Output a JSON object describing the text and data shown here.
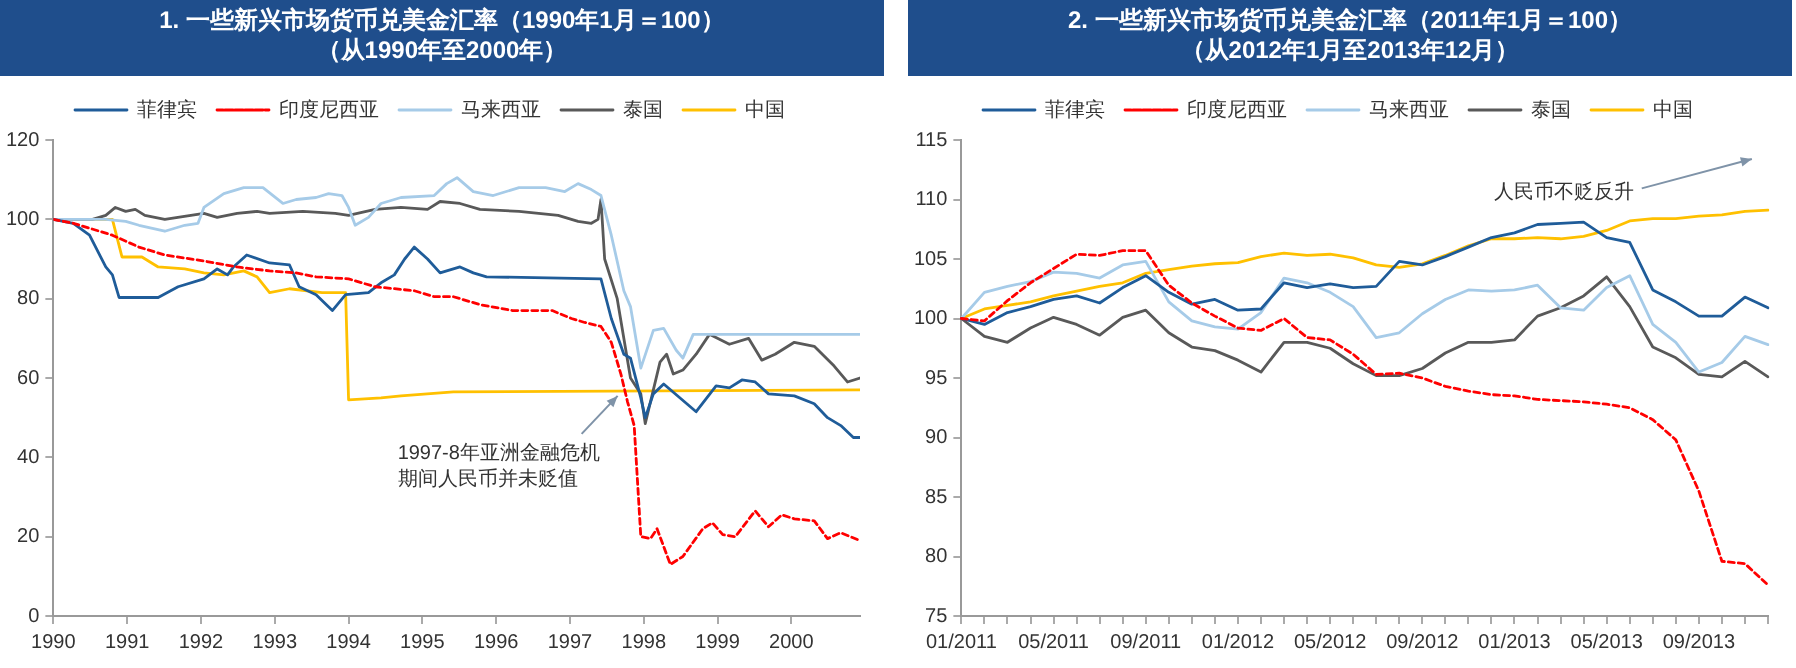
{
  "chart_data": [
    {
      "type": "line",
      "title": "1. 一些新兴市场货币兑美金汇率（1990年1月＝100）",
      "subtitle": "（从1990年至2000年）",
      "xlim": [
        1990,
        2000.93
      ],
      "xticks": [
        1990,
        1991,
        1992,
        1993,
        1994,
        1995,
        1996,
        1997,
        1998,
        1999,
        2000
      ],
      "ylim": [
        0,
        120
      ],
      "yticks": [
        0,
        20,
        40,
        60,
        80,
        100,
        120
      ],
      "legend": "top",
      "annotations": [
        {
          "text": "1997-8年亚洲金融危机期间人民币并未贬值",
          "x": 1997.7,
          "y": 57
        }
      ],
      "series": [
        {
          "name": "菲律宾",
          "color": "#1f5c99",
          "x": [
            1990,
            1990.27,
            1990.49,
            1990.71,
            1990.8,
            1990.89,
            1991.42,
            1991.69,
            1992.04,
            1992.22,
            1992.36,
            1992.44,
            1992.62,
            1992.93,
            1993.2,
            1993.33,
            1993.56,
            1993.78,
            1993.96,
            1994.27,
            1994.44,
            1994.62,
            1994.76,
            1994.89,
            1995.07,
            1995.24,
            1995.51,
            1995.69,
            1995.87,
            1997.42,
            1997.56,
            1997.73,
            1997.82,
            1997.96,
            1998.02,
            1998.13,
            1998.27,
            1998.71,
            1998.98,
            1999.16,
            1999.33,
            1999.51,
            1999.69,
            2000.04,
            2000.31,
            2000.49,
            2000.67,
            2000.84,
            2000.93
          ],
          "values": [
            100,
            99,
            96,
            88,
            86,
            80.3,
            80.3,
            83,
            85,
            87.5,
            86,
            88,
            91,
            89,
            88.5,
            83,
            81,
            77,
            81,
            81.5,
            84,
            86,
            90,
            93,
            90,
            86.5,
            88,
            86.5,
            85.5,
            85,
            75,
            66,
            65,
            55,
            50,
            56,
            58.5,
            51.5,
            58,
            57.5,
            59.5,
            59,
            56,
            55.5,
            53.5,
            50,
            48,
            45,
            45
          ]
        },
        {
          "name": "印度尼西亚",
          "color": "#ff0000",
          "line_style": "dashed",
          "x": [
            1990,
            1990.27,
            1990.8,
            1991.16,
            1991.51,
            1992.04,
            1992.49,
            1992.93,
            1993.29,
            1993.56,
            1994,
            1994.18,
            1994.36,
            1994.89,
            1995.16,
            1995.42,
            1995.78,
            1996.22,
            1996.76,
            1997.02,
            1997.2,
            1997.42,
            1997.56,
            1997.69,
            1997.78,
            1997.87,
            1997.96,
            1998.09,
            1998.18,
            1998.36,
            1998.53,
            1998.8,
            1998.93,
            1999.07,
            1999.24,
            1999.51,
            1999.69,
            1999.87,
            2000.04,
            2000.31,
            2000.49,
            2000.67,
            2000.93
          ],
          "values": [
            100,
            99,
            96,
            93,
            91,
            89.5,
            88,
            87,
            86.5,
            85.5,
            85,
            84,
            83,
            82,
            80.5,
            80.5,
            78.5,
            77,
            77,
            75,
            74,
            73,
            69,
            61,
            54,
            48,
            20,
            19.5,
            22,
            13,
            15,
            22,
            23.5,
            20.5,
            20,
            26.5,
            22.5,
            25.5,
            24.5,
            24,
            19.5,
            21,
            19
          ]
        },
        {
          "name": "马来西亚",
          "color": "#a6cbe8",
          "x": [
            1990,
            1990.71,
            1990.98,
            1991.16,
            1991.51,
            1991.78,
            1991.96,
            1992.04,
            1992.31,
            1992.58,
            1992.84,
            1993.11,
            1993.29,
            1993.56,
            1993.73,
            1993.91,
            1994,
            1994.09,
            1994.27,
            1994.44,
            1994.71,
            1995.16,
            1995.33,
            1995.47,
            1995.69,
            1995.96,
            1996.31,
            1996.67,
            1996.93,
            1997.11,
            1997.29,
            1997.42,
            1997.56,
            1997.73,
            1997.82,
            1997.96,
            1998.13,
            1998.27,
            1998.44,
            1998.53,
            1998.67,
            2000.93
          ],
          "values": [
            100,
            100,
            99.5,
            98.5,
            97,
            98.5,
            99,
            103,
            106.5,
            108,
            108,
            104,
            105,
            105.5,
            106.5,
            106,
            103,
            98.5,
            100.5,
            104,
            105.5,
            106,
            109,
            110.5,
            107,
            106,
            108,
            108,
            107,
            109,
            107.5,
            106,
            96,
            82,
            78,
            62.5,
            72,
            72.5,
            67,
            65,
            71,
            71
          ]
        },
        {
          "name": "泰国",
          "color": "#595959",
          "x": [
            1990,
            1990.53,
            1990.71,
            1990.84,
            1990.98,
            1991.11,
            1991.24,
            1991.51,
            1992.04,
            1992.22,
            1992.49,
            1992.76,
            1992.93,
            1993.38,
            1993.82,
            1994,
            1994.36,
            1994.71,
            1995.07,
            1995.24,
            1995.51,
            1995.78,
            1996.31,
            1996.84,
            1997.11,
            1997.29,
            1997.38,
            1997.42,
            1997.47,
            1997.64,
            1997.82,
            1997.96,
            1998.02,
            1998.13,
            1998.22,
            1998.31,
            1998.4,
            1998.53,
            1998.71,
            1998.89,
            1999.16,
            1999.42,
            1999.6,
            1999.78,
            2000.04,
            2000.31,
            2000.58,
            2000.76,
            2000.93
          ],
          "values": [
            100,
            100,
            101,
            103,
            102,
            102.5,
            101,
            100,
            101.5,
            100.5,
            101.5,
            102,
            101.5,
            102,
            101.5,
            101,
            102.5,
            103,
            102.5,
            104.5,
            104,
            102.5,
            102,
            101,
            99.5,
            99,
            100,
            105,
            90,
            80,
            60,
            56,
            48.5,
            57,
            64,
            66,
            61,
            62,
            66,
            71,
            68.5,
            70,
            64.5,
            66,
            69,
            68,
            63,
            59,
            60
          ]
        },
        {
          "name": "中国",
          "color": "#ffc000",
          "x": [
            1990,
            1990.8,
            1990.93,
            1991.2,
            1991.42,
            1991.78,
            1992.04,
            1992.31,
            1992.58,
            1992.76,
            1992.93,
            1993.2,
            1993.64,
            1993.96,
            1994,
            1994.44,
            1994.71,
            1995.42,
            2000.93
          ],
          "values": [
            100,
            100,
            90.5,
            90.5,
            88,
            87.5,
            86.5,
            86,
            87,
            85.5,
            81.5,
            82.5,
            81.5,
            81.5,
            54.5,
            55,
            55.5,
            56.5,
            57
          ]
        }
      ]
    },
    {
      "type": "line",
      "title": "2. 一些新兴市场货币兑美金汇率（2011年1月＝100）",
      "subtitle": "（从2012年1月至2013年12月）",
      "categories": [
        "01/2011",
        null,
        null,
        null,
        "05/2011",
        null,
        null,
        null,
        "09/2011",
        null,
        null,
        null,
        "01/2012",
        null,
        null,
        null,
        "05/2012",
        null,
        null,
        null,
        "09/2012",
        null,
        null,
        null,
        "01/2013",
        null,
        null,
        null,
        "05/2013",
        null,
        null,
        null,
        "09/2013",
        null,
        null,
        null
      ],
      "ylim": [
        75,
        115
      ],
      "yticks": [
        75,
        80,
        85,
        90,
        95,
        100,
        105,
        110,
        115
      ],
      "legend": "top",
      "annotations": [
        "人民币不贬反升"
      ],
      "series": [
        {
          "name": "菲律宾",
          "color": "#1f5c99",
          "values": [
            100,
            99.5,
            100.5,
            101,
            101.6,
            101.9,
            101.3,
            102.6,
            103.6,
            102.2,
            101.2,
            101.6,
            100.7,
            100.8,
            103,
            102.6,
            102.9,
            102.6,
            102.7,
            104.8,
            104.5,
            105.2,
            106,
            106.8,
            107.2,
            107.9,
            108,
            108.1,
            106.8,
            106.4,
            102.4,
            101.4,
            100.2,
            100.2,
            101.8,
            100.9
          ]
        },
        {
          "name": "印度尼西亚",
          "color": "#ff0000",
          "line_style": "dashed",
          "values": [
            100,
            99.8,
            101.5,
            103,
            104.2,
            105.4,
            105.3,
            105.7,
            105.7,
            102.8,
            101.3,
            100.2,
            99.2,
            99,
            100,
            98.4,
            98.2,
            97,
            95.3,
            95.4,
            95,
            94.3,
            93.9,
            93.6,
            93.5,
            93.2,
            93.1,
            93,
            92.8,
            92.5,
            91.5,
            89.8,
            85.5,
            79.6,
            79.4,
            77.6
          ]
        },
        {
          "name": "马来西亚",
          "color": "#a6cbe8",
          "values": [
            100,
            102.2,
            102.7,
            103.1,
            103.9,
            103.8,
            103.4,
            104.5,
            104.8,
            101.4,
            99.8,
            99.3,
            99.1,
            100.5,
            103.4,
            103,
            102.2,
            101,
            98.4,
            98.8,
            100.4,
            101.6,
            102.4,
            102.3,
            102.4,
            102.8,
            100.9,
            100.7,
            102.6,
            103.6,
            99.5,
            98,
            95.5,
            96.3,
            98.5,
            97.8
          ]
        },
        {
          "name": "泰国",
          "color": "#595959",
          "values": [
            100,
            98.5,
            98,
            99.2,
            100.1,
            99.5,
            98.6,
            100.1,
            100.7,
            98.8,
            97.6,
            97.3,
            96.5,
            95.5,
            98,
            98,
            97.5,
            96.2,
            95.2,
            95.2,
            95.8,
            97.1,
            98,
            98,
            98.2,
            100.2,
            100.9,
            101.9,
            103.5,
            101,
            97.6,
            96.7,
            95.3,
            95.1,
            96.4,
            95.1
          ]
        },
        {
          "name": "中国",
          "color": "#ffc000",
          "values": [
            100,
            100.8,
            101.1,
            101.4,
            101.9,
            102.3,
            102.7,
            103,
            103.8,
            104.1,
            104.4,
            104.6,
            104.7,
            105.2,
            105.5,
            105.3,
            105.4,
            105.1,
            104.5,
            104.3,
            104.6,
            105.3,
            106.1,
            106.7,
            106.7,
            106.8,
            106.7,
            106.9,
            107.4,
            108.2,
            108.4,
            108.4,
            108.6,
            108.7,
            109,
            109.1
          ]
        }
      ]
    }
  ]
}
